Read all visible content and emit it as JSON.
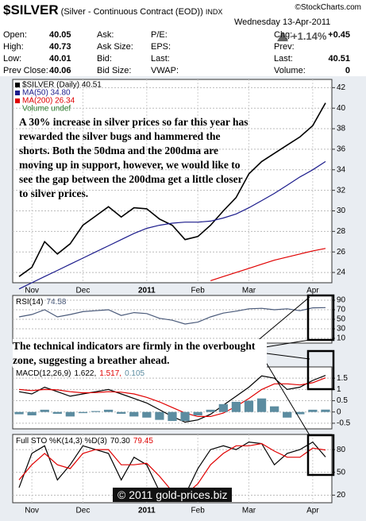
{
  "header": {
    "symbol": "$SILVER",
    "name": "(Silver - Continuous Contract (EOD))",
    "exchange": "INDX",
    "source": "©StockCharts.com",
    "date": "Wednesday  13-Apr-2011",
    "change_pct": "+1.14%"
  },
  "quote": {
    "rows": [
      [
        "Open:",
        "40.05",
        "Ask:",
        "",
        "P/E:",
        "",
        "Chg:",
        "+0.45"
      ],
      [
        "High:",
        "40.73",
        "Ask Size:",
        "",
        "EPS:",
        "",
        "Prev:",
        ""
      ],
      [
        "Low:",
        "40.01",
        "Bid:",
        "",
        "Last:",
        "",
        "Last:",
        "40.51"
      ],
      [
        "Prev Close:",
        "40.06",
        "Bid Size:",
        "",
        "VWAP:",
        "",
        "Volume:",
        "0"
      ]
    ]
  },
  "chart_data": [
    {
      "type": "line",
      "categories": [
        null,
        "Nov",
        null,
        null,
        null,
        "Dec",
        null,
        null,
        null,
        null,
        "2011",
        null,
        null,
        null,
        "Feb",
        null,
        null,
        null,
        "Mar",
        null,
        null,
        null,
        null,
        "Apr",
        null
      ],
      "series": [
        {
          "name": "$SILVER (Daily) 40.51",
          "color": "#000000",
          "values": [
            23.6,
            24.5,
            27.0,
            25.8,
            26.8,
            28.6,
            29.5,
            30.4,
            29.4,
            30.3,
            30.2,
            29.2,
            28.6,
            27.2,
            27.5,
            28.6,
            30.0,
            31.3,
            33.6,
            34.8,
            35.6,
            36.4,
            37.2,
            38.3,
            40.51
          ]
        },
        {
          "name": "MA(50) 34.80",
          "color": "#1c1c8c",
          "values": [
            22.4,
            23.0,
            23.6,
            24.2,
            24.8,
            25.4,
            26.0,
            26.6,
            27.2,
            27.8,
            28.3,
            28.6,
            28.8,
            28.9,
            28.9,
            29.0,
            29.3,
            29.7,
            30.3,
            31.0,
            31.7,
            32.5,
            33.3,
            34.0,
            34.8
          ]
        },
        {
          "name": "MA(200) 26.34",
          "color": "#e00000",
          "values": [
            null,
            null,
            null,
            null,
            null,
            null,
            null,
            null,
            null,
            null,
            null,
            null,
            null,
            null,
            null,
            23.2,
            23.6,
            24.0,
            24.4,
            24.8,
            25.2,
            25.5,
            25.8,
            26.1,
            26.34
          ]
        }
      ],
      "legend_extra": "Volume undef",
      "ylim": [
        23,
        42.8
      ],
      "yticks": [
        24,
        26,
        28,
        30,
        32,
        34,
        36,
        38,
        40,
        42
      ],
      "grid": true,
      "annotation": "A 30% increase in silver prices so far this year has rewarded the silver bugs and hammered the shorts. Both the 50dma and the 200dma are moving up in support, however, we would like to see the gap between the 200dma get a little closer to silver prices."
    },
    {
      "type": "line",
      "label": "RSI(14)",
      "series": [
        {
          "name": "74.58",
          "color": "#4a5a7a",
          "values": [
            55,
            60,
            70,
            55,
            60,
            66,
            68,
            70,
            58,
            64,
            62,
            52,
            48,
            40,
            44,
            55,
            63,
            67,
            72,
            73,
            70,
            72,
            68,
            74,
            74.58
          ]
        }
      ],
      "ylim": [
        0,
        100
      ],
      "yticks": [
        10,
        30,
        50,
        70,
        90
      ],
      "grid": true,
      "annotation": "The technical indicators are firmly in the overbought zone, suggesting a breather ahead."
    },
    {
      "type": "line",
      "label": "MACD(12,26,9)",
      "series": [
        {
          "name": "1.622,",
          "color": "#000000",
          "values": [
            0.9,
            0.8,
            1.1,
            0.9,
            0.7,
            0.8,
            0.9,
            1.0,
            0.8,
            0.6,
            0.4,
            0.1,
            -0.2,
            -0.45,
            -0.35,
            -0.1,
            0.3,
            0.7,
            1.1,
            1.6,
            1.5,
            1.0,
            1.1,
            1.4,
            1.622
          ]
        },
        {
          "name": "1.517,",
          "color": "#e00000",
          "values": [
            1.0,
            0.95,
            1.0,
            0.98,
            0.9,
            0.85,
            0.86,
            0.9,
            0.88,
            0.8,
            0.65,
            0.45,
            0.2,
            -0.05,
            -0.2,
            -0.2,
            -0.05,
            0.25,
            0.6,
            1.0,
            1.25,
            1.25,
            1.2,
            1.3,
            1.517
          ]
        },
        {
          "name": "0.105",
          "color": "#5c8ca0",
          "kind": "histogram",
          "values": [
            -0.1,
            -0.15,
            0.1,
            -0.08,
            -0.2,
            -0.05,
            0.04,
            0.1,
            -0.08,
            -0.2,
            -0.25,
            -0.35,
            -0.4,
            -0.4,
            -0.15,
            0.1,
            0.35,
            0.45,
            0.5,
            0.6,
            0.25,
            -0.25,
            -0.1,
            0.1,
            0.105
          ]
        }
      ],
      "ylim": [
        -0.75,
        2.0
      ],
      "yticks": [
        -0.5,
        0.0,
        0.5,
        1.0,
        1.5
      ],
      "grid": true
    },
    {
      "type": "line",
      "label": "Full STO %K(14,3) %D(3)",
      "categories": [
        null,
        "Nov",
        null,
        null,
        null,
        "Dec",
        null,
        null,
        null,
        null,
        "2011",
        null,
        null,
        null,
        "Feb",
        null,
        null,
        null,
        "Mar",
        null,
        null,
        null,
        null,
        "Apr",
        null
      ],
      "series": [
        {
          "name": "70.30",
          "color": "#000000",
          "values": [
            30,
            75,
            85,
            40,
            60,
            85,
            80,
            75,
            40,
            70,
            60,
            25,
            15,
            20,
            55,
            80,
            85,
            80,
            90,
            88,
            60,
            75,
            80,
            90,
            70.3
          ]
        },
        {
          "name": "79.45",
          "color": "#e00000",
          "values": [
            40,
            60,
            75,
            60,
            55,
            75,
            80,
            80,
            60,
            60,
            62,
            45,
            25,
            20,
            35,
            60,
            75,
            85,
            85,
            88,
            78,
            70,
            70,
            82,
            79.45
          ]
        }
      ],
      "ylim": [
        10,
        100
      ],
      "yticks": [
        20,
        50,
        80
      ],
      "grid": true
    }
  ],
  "copyright": "© 2011 gold-prices.biz"
}
